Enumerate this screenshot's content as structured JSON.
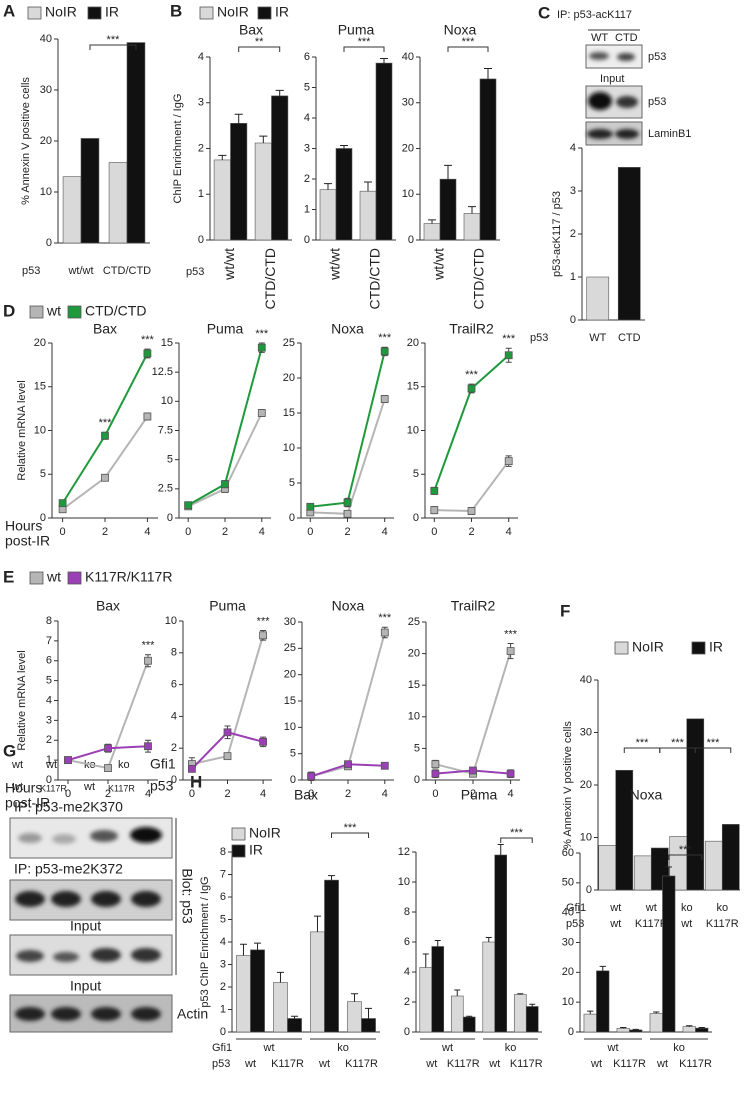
{
  "figure": {
    "panel_letters": [
      "A",
      "B",
      "C",
      "D",
      "E",
      "F",
      "G",
      "H"
    ],
    "blot_c": {
      "ip": "IP: p53-acK117",
      "lanes": [
        "WT",
        "CTD"
      ],
      "input": "Input",
      "rows": [
        "p53",
        "p53",
        "LaminB1"
      ]
    },
    "blot_g": {
      "gfi1": [
        "wt",
        "wt",
        "ko",
        "ko"
      ],
      "gfi1_label": "Gfi1",
      "p53": [
        "wt",
        "K117R",
        "wt",
        "K117R"
      ],
      "p53_label": "p53",
      "ip": [
        "IP: p53-me2K370",
        "IP: p53-me2K372"
      ],
      "input": [
        "Input",
        "Input"
      ],
      "actin": "Actin",
      "blot": "Blot: p53"
    }
  },
  "chart_data": [
    {
      "type": "bar",
      "ylabel": "% Annexin V positive cells",
      "categories": [
        "wt/wt",
        "CTD/CTD"
      ],
      "category_label": "p53",
      "series": [
        {
          "name": "NoIR",
          "color": "#d9d9d9",
          "values": [
            13,
            15.8
          ]
        },
        {
          "name": "IR",
          "color": "#111111",
          "values": [
            20.5,
            39.3
          ]
        }
      ],
      "ylim": [
        0,
        40
      ],
      "yticks": [
        0,
        10,
        20,
        30,
        40
      ],
      "legend": "top",
      "annotations": [
        "***"
      ]
    },
    {
      "type": "bar",
      "title": "Bax",
      "ylabel": "ChIP Enrichment / IgG",
      "categories": [
        "wt/wt",
        "CTD/CTD"
      ],
      "category_label": "p53",
      "series": [
        {
          "name": "NoIR",
          "color": "#d9d9d9",
          "values": [
            1.75,
            2.12
          ],
          "errors": [
            0.1,
            0.15
          ]
        },
        {
          "name": "IR",
          "color": "#111111",
          "values": [
            2.55,
            3.15
          ],
          "errors": [
            0.2,
            0.12
          ]
        }
      ],
      "ylim": [
        0,
        4
      ],
      "yticks": [
        0,
        1,
        2,
        3,
        4
      ],
      "legend": "top",
      "annotations": [
        "**"
      ]
    },
    {
      "type": "bar",
      "title": "Puma",
      "categories": [
        "wt/wt",
        "CTD/CTD"
      ],
      "series": [
        {
          "color": "#d9d9d9",
          "values": [
            1.65,
            1.6
          ],
          "errors": [
            0.2,
            0.3
          ]
        },
        {
          "color": "#111111",
          "values": [
            3.0,
            5.8
          ],
          "errors": [
            0.1,
            0.15
          ]
        }
      ],
      "ylim": [
        0,
        6
      ],
      "yticks": [
        0,
        1,
        2,
        3,
        4,
        5,
        6
      ],
      "annotations": [
        "***"
      ]
    },
    {
      "type": "bar",
      "title": "Noxa",
      "categories": [
        "wt/wt",
        "CTD/CTD"
      ],
      "series": [
        {
          "color": "#d9d9d9",
          "values": [
            3.6,
            5.8
          ],
          "errors": [
            0.8,
            1.5
          ]
        },
        {
          "color": "#111111",
          "values": [
            13.3,
            35.2
          ],
          "errors": [
            3,
            2.3
          ]
        }
      ],
      "ylim": [
        0,
        40
      ],
      "yticks": [
        0,
        10,
        20,
        30,
        40
      ],
      "annotations": [
        "***"
      ]
    },
    {
      "type": "bar",
      "ylabel": "p53-acK117 / p53",
      "categories": [
        "WT",
        "CTD"
      ],
      "category_label": "p53",
      "values": [
        1,
        3.55
      ],
      "colors": [
        "#d9d9d9",
        "#111111"
      ],
      "ylim": [
        0,
        4
      ],
      "yticks": [
        0,
        1,
        2,
        3,
        4
      ]
    },
    {
      "type": "line",
      "title": "Bax",
      "ylabel": "Relative mRNA level",
      "xlabel": [
        "Hours",
        "post-IR"
      ],
      "x": [
        0,
        2,
        4
      ],
      "xlim": [
        -0.5,
        4.5
      ],
      "xticks": [
        0,
        2,
        4
      ],
      "series": [
        {
          "name": "wt",
          "color": "#b5b5b5",
          "values": [
            1.0,
            4.6,
            11.6
          ],
          "errors": [
            0.3,
            0.3,
            0.4
          ]
        },
        {
          "name": "CTD/CTD",
          "color": "#1e9a3c",
          "values": [
            1.7,
            9.4,
            18.8
          ],
          "errors": [
            0.3,
            0.4,
            0.5
          ]
        }
      ],
      "ylim": [
        0,
        20
      ],
      "yticks": [
        0,
        5,
        10,
        15,
        20
      ],
      "legend": "top",
      "annotations": [
        "***",
        "***"
      ]
    },
    {
      "type": "line",
      "title": "Puma",
      "x": [
        0,
        2,
        4
      ],
      "xlim": [
        -0.5,
        4.5
      ],
      "xticks": [
        0,
        2,
        4
      ],
      "series": [
        {
          "color": "#b5b5b5",
          "values": [
            1.0,
            2.5,
            9.0
          ],
          "errors": [
            0.2,
            0.3,
            0.3
          ]
        },
        {
          "color": "#1e9a3c",
          "values": [
            1.1,
            2.9,
            14.6
          ],
          "errors": [
            0.2,
            0.3,
            0.4
          ]
        }
      ],
      "ylim": [
        0,
        15
      ],
      "yticks": [
        0,
        2.5,
        5,
        7.5,
        10,
        12.5,
        15
      ],
      "annotations": [
        "***"
      ]
    },
    {
      "type": "line",
      "title": "Noxa",
      "x": [
        0,
        2,
        4
      ],
      "xlim": [
        -0.5,
        4.5
      ],
      "xticks": [
        0,
        2,
        4
      ],
      "series": [
        {
          "color": "#b5b5b5",
          "values": [
            0.8,
            0.6,
            17
          ],
          "errors": [
            0.3,
            0.2,
            0.5
          ]
        },
        {
          "color": "#1e9a3c",
          "values": [
            1.6,
            2.2,
            23.8
          ],
          "errors": [
            0.4,
            0.6,
            0.6
          ]
        }
      ],
      "ylim": [
        0,
        25
      ],
      "yticks": [
        0,
        5,
        10,
        15,
        20,
        25
      ],
      "annotations": [
        "***"
      ]
    },
    {
      "type": "line",
      "title": "TrailR2",
      "x": [
        0,
        2,
        4
      ],
      "xlim": [
        -0.5,
        4.5
      ],
      "xticks": [
        0,
        2,
        4
      ],
      "series": [
        {
          "color": "#b5b5b5",
          "values": [
            0.9,
            0.8,
            6.5
          ],
          "errors": [
            0.4,
            0.4,
            0.6
          ]
        },
        {
          "color": "#1e9a3c",
          "values": [
            3.1,
            14.8,
            18.6
          ],
          "errors": [
            0.4,
            0.5,
            0.8
          ]
        }
      ],
      "ylim": [
        0,
        20
      ],
      "yticks": [
        0,
        5,
        10,
        15,
        20
      ],
      "annotations": [
        "***",
        "***"
      ]
    },
    {
      "type": "line",
      "title": "Bax",
      "ylabel": "Relative mRNA level",
      "xlabel": [
        "Hours",
        "post-IR"
      ],
      "x": [
        0,
        2,
        4
      ],
      "xlim": [
        -0.5,
        4.5
      ],
      "xticks": [
        0,
        2,
        4
      ],
      "series": [
        {
          "name": "wt",
          "color": "#b5b5b5",
          "values": [
            1,
            0.6,
            6
          ],
          "errors": [
            0.1,
            0.05,
            0.3
          ]
        },
        {
          "name": "K117R/K117R",
          "color": "#9b3fb5",
          "values": [
            1,
            1.6,
            1.7
          ],
          "errors": [
            0.1,
            0.2,
            0.3
          ]
        }
      ],
      "ylim": [
        0,
        8
      ],
      "yticks": [
        0,
        1,
        2,
        3,
        4,
        5,
        6,
        7,
        8
      ],
      "legend": "top",
      "annotations": [
        "***"
      ]
    },
    {
      "type": "line",
      "title": "Puma",
      "x": [
        0,
        2,
        4
      ],
      "xlim": [
        -0.5,
        4.5
      ],
      "xticks": [
        0,
        2,
        4
      ],
      "series": [
        {
          "color": "#b5b5b5",
          "values": [
            1,
            1.5,
            9.1
          ],
          "errors": [
            0.4,
            0.2,
            0.3
          ]
        },
        {
          "color": "#9b3fb5",
          "values": [
            0.7,
            3,
            2.4
          ],
          "errors": [
            0.2,
            0.4,
            0.3
          ]
        }
      ],
      "ylim": [
        0,
        10
      ],
      "yticks": [
        0,
        2,
        4,
        6,
        8,
        10
      ],
      "annotations": [
        "***"
      ]
    },
    {
      "type": "line",
      "title": "Noxa",
      "x": [
        0,
        2,
        4
      ],
      "xlim": [
        -0.5,
        4.5
      ],
      "xticks": [
        0,
        2,
        4
      ],
      "series": [
        {
          "color": "#b5b5b5",
          "values": [
            0.7,
            2.6,
            28
          ],
          "errors": [
            0.8,
            0.5,
            1
          ]
        },
        {
          "color": "#9b3fb5",
          "values": [
            0.7,
            3,
            2.7
          ],
          "errors": [
            0.7,
            0.6,
            0.5
          ]
        }
      ],
      "ylim": [
        0,
        30
      ],
      "yticks": [
        0,
        5,
        10,
        15,
        20,
        25,
        30
      ],
      "annotations": [
        "***"
      ]
    },
    {
      "type": "line",
      "title": "TrailR2",
      "x": [
        0,
        2,
        4
      ],
      "xlim": [
        -0.5,
        4.5
      ],
      "xticks": [
        0,
        2,
        4
      ],
      "series": [
        {
          "color": "#b5b5b5",
          "values": [
            2.5,
            1,
            20.4
          ],
          "errors": [
            0.6,
            0.5,
            1.2
          ]
        },
        {
          "color": "#9b3fb5",
          "values": [
            1,
            1.5,
            1
          ],
          "errors": [
            0.6,
            0.5,
            0.6
          ]
        }
      ],
      "ylim": [
        0,
        25
      ],
      "yticks": [
        0,
        5,
        10,
        15,
        20,
        25
      ],
      "annotations": [
        "***"
      ]
    },
    {
      "type": "bar",
      "ylabel": "% Annexin V positive cells",
      "categories": [
        "wt",
        "K117R",
        "wt",
        "K117R"
      ],
      "category_label": "p53",
      "groups": [
        "wt",
        "wt",
        "ko",
        "ko"
      ],
      "group_label": "Gfi1",
      "series": [
        {
          "name": "NoIR",
          "color": "#d9d9d9",
          "values": [
            8.5,
            6.5,
            10.2,
            9.3
          ]
        },
        {
          "name": "IR",
          "color": "#111111",
          "values": [
            22.8,
            8,
            32.6,
            12.5
          ]
        }
      ],
      "ylim": [
        0,
        40
      ],
      "yticks": [
        0,
        10,
        20,
        30,
        40
      ],
      "legend": "top",
      "annotations": [
        "***",
        "***",
        "***"
      ]
    },
    {
      "type": "bar",
      "title": "Bax",
      "ylabel": "p53 ChIP Enrichment / IgG",
      "categories": [
        "wt",
        "K117R",
        "wt",
        "K117R"
      ],
      "category_label": "p53",
      "groups": [
        "wt",
        "ko"
      ],
      "group_label": "Gfi1",
      "series": [
        {
          "name": "NoIR",
          "color": "#d9d9d9",
          "values": [
            3.4,
            2.2,
            4.45,
            1.35
          ],
          "errors": [
            0.5,
            0.45,
            0.7,
            0.35
          ]
        },
        {
          "name": "IR",
          "color": "#111111",
          "values": [
            3.65,
            0.6,
            6.75,
            0.6
          ],
          "errors": [
            0.3,
            0.1,
            0.2,
            0.45
          ]
        }
      ],
      "ylim": [
        0,
        8
      ],
      "yticks": [
        0,
        1,
        2,
        3,
        4,
        5,
        6,
        7,
        8
      ],
      "legend": "top-left",
      "annotations": [
        "***"
      ]
    },
    {
      "type": "bar",
      "title": "Puma",
      "categories": [
        "wt",
        "K117R",
        "wt",
        "K117R"
      ],
      "groups": [
        "wt",
        "ko"
      ],
      "series": [
        {
          "color": "#d9d9d9",
          "values": [
            4.3,
            2.4,
            6,
            2.5
          ],
          "errors": [
            0.9,
            0.4,
            0.3,
            0.05
          ]
        },
        {
          "color": "#111111",
          "values": [
            5.7,
            1,
            11.8,
            1.7
          ],
          "errors": [
            0.4,
            0.05,
            0.7,
            0.15
          ]
        }
      ],
      "ylim": [
        0,
        12
      ],
      "yticks": [
        0,
        2,
        4,
        6,
        8,
        10,
        12
      ],
      "annotations": [
        "***"
      ]
    },
    {
      "type": "bar",
      "title": "Noxa",
      "categories": [
        "wt",
        "K117R",
        "wt",
        "K117R"
      ],
      "groups": [
        "wt",
        "ko"
      ],
      "series": [
        {
          "color": "#d9d9d9",
          "values": [
            6,
            1.2,
            6.2,
            1.8
          ],
          "errors": [
            1,
            0.3,
            0.5,
            0.3
          ]
        },
        {
          "color": "#111111",
          "values": [
            20.5,
            0.7,
            52.3,
            1.3
          ],
          "errors": [
            1.5,
            0.2,
            3,
            0.2
          ]
        }
      ],
      "ylim": [
        0,
        60
      ],
      "yticks": [
        0,
        10,
        20,
        30,
        40,
        50,
        60
      ],
      "annotations": [
        "***"
      ]
    }
  ]
}
